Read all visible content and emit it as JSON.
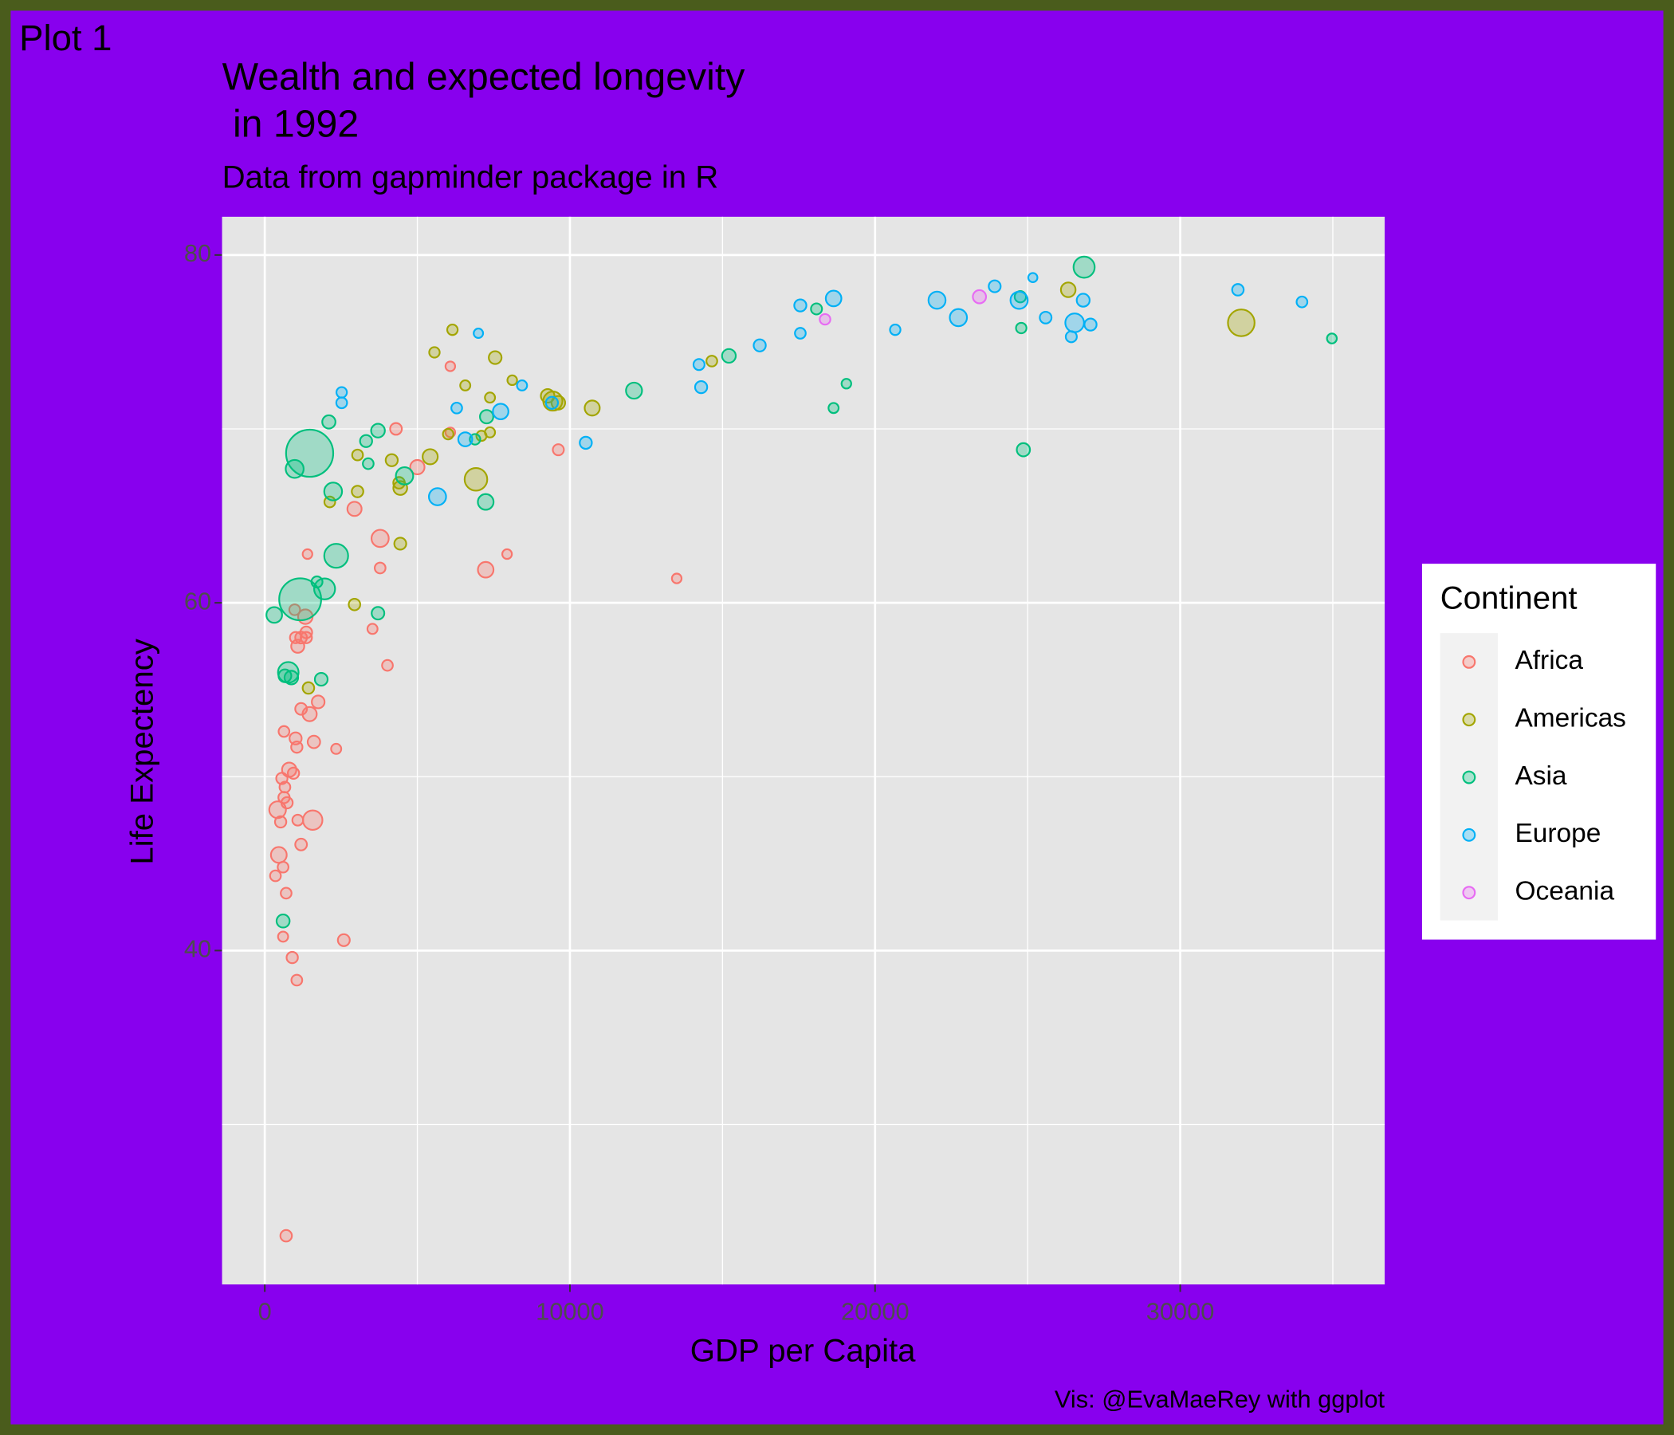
{
  "chart_data": {
    "type": "scatter",
    "tag": "Plot 1",
    "title": "Wealth and expected longevity\n in 1992",
    "subtitle": "Data from gapminder package in R",
    "x_label": "GDP per Capita",
    "y_label": "Life Expectency",
    "caption": "Vis: @EvaMaeRey with ggplot",
    "legend_title": "Continent",
    "legend": "right",
    "grid": true,
    "xlim": [
      -1400,
      36700
    ],
    "ylim": [
      20.8,
      82.2
    ],
    "xticks": [
      0,
      10000,
      20000,
      30000
    ],
    "yticks": [
      40,
      60,
      80
    ],
    "xminor": [
      5000,
      15000,
      25000,
      35000
    ],
    "yminor": [
      30,
      50,
      70
    ],
    "series": [
      {
        "name": "Africa",
        "color": "#F8766D",
        "x": [
          700,
          2590,
          1050,
          900,
          600,
          700,
          350,
          600,
          460,
          1190,
          1570,
          1080,
          520,
          420,
          730,
          630,
          660,
          560,
          800,
          940,
          1050,
          1010,
          1610,
          2340,
          630,
          1190,
          1470,
          1750,
          1080,
          1010,
          1190,
          1360,
          1360,
          980,
          1330,
          4020,
          3530,
          3780,
          1400,
          3780,
          2940,
          4300,
          5000,
          6080,
          6080,
          7240,
          7940,
          9620,
          13500
        ],
        "values": [
          23.6,
          40.6,
          38.3,
          39.6,
          40.8,
          43.3,
          44.3,
          44.8,
          45.5,
          46.1,
          47.5,
          47.5,
          47.4,
          48.1,
          48.5,
          48.8,
          49.4,
          49.9,
          50.4,
          50.2,
          51.7,
          52.2,
          52.0,
          51.6,
          52.6,
          53.9,
          53.6,
          54.3,
          57.5,
          58.0,
          58.0,
          58.3,
          58.0,
          59.6,
          59.2,
          56.4,
          58.5,
          62.0,
          62.8,
          63.7,
          65.4,
          70.0,
          67.8,
          73.6,
          69.8,
          61.9,
          62.8,
          68.8,
          61.4
        ],
        "sizes": [
          7,
          9,
          4,
          6,
          2,
          4,
          4,
          4,
          41,
          8,
          93,
          4,
          6,
          52,
          6,
          6,
          4,
          6,
          26,
          6,
          6,
          10,
          12,
          2,
          4,
          8,
          25,
          14,
          16,
          6,
          8,
          8,
          6,
          4,
          28,
          4,
          2,
          4,
          1,
          59,
          25,
          8,
          26,
          1,
          1,
          39,
          1,
          5,
          1
        ]
      },
      {
        "name": "Americas",
        "color": "#A3A500",
        "x": [
          32000,
          26330,
          10730,
          9440,
          9270,
          6920,
          7550,
          6150,
          5560,
          6570,
          8110,
          7380,
          7380,
          7100,
          6010,
          5420,
          4440,
          4400,
          4160,
          3040,
          3040,
          2130,
          4440,
          2940,
          1430,
          14650,
          9620
        ],
        "values": [
          76.1,
          78.0,
          71.2,
          71.6,
          71.9,
          67.1,
          74.1,
          75.7,
          74.4,
          72.5,
          72.8,
          71.8,
          69.8,
          69.6,
          69.7,
          68.4,
          66.6,
          66.9,
          68.2,
          68.5,
          66.4,
          65.8,
          63.4,
          59.9,
          55.1,
          73.9,
          71.5
        ],
        "sizes": [
          256,
          29,
          33,
          88,
          20,
          155,
          14,
          3,
          3,
          2,
          1,
          2,
          2,
          2,
          3,
          34,
          22,
          7,
          10,
          4,
          7,
          4,
          9,
          7,
          7,
          4,
          20
        ]
      },
      {
        "name": "Asia",
        "color": "#00BF7D",
        "x": [
          1470,
          1160,
          2340,
          1960,
          1710,
          310,
          770,
          870,
          660,
          1850,
          600,
          980,
          2240,
          2100,
          3320,
          3710,
          3390,
          4580,
          3710,
          6890,
          7270,
          7240,
          12100,
          15210,
          18080,
          19060,
          18640,
          24790,
          24860,
          24760,
          26850,
          34970
        ],
        "values": [
          68.6,
          60.2,
          62.7,
          60.8,
          61.2,
          59.3,
          56.0,
          55.7,
          55.8,
          55.6,
          41.7,
          67.7,
          66.4,
          70.4,
          69.3,
          69.9,
          68.0,
          67.3,
          59.4,
          69.4,
          70.7,
          65.8,
          72.2,
          74.2,
          76.9,
          72.6,
          71.2,
          75.8,
          68.8,
          77.6,
          79.3,
          75.2
        ],
        "sizes": [
          1164,
          872,
          184,
          120,
          5,
          40,
          113,
          20,
          14,
          14,
          16,
          69,
          67,
          17,
          10,
          21,
          4,
          60,
          13,
          3,
          18,
          40,
          44,
          21,
          5,
          1,
          2,
          3,
          17,
          6,
          124,
          1.4
        ]
      },
      {
        "name": "Europe",
        "color": "#00B0F6",
        "x": [
          2520,
          2520,
          6290,
          6570,
          5660,
          7730,
          7000,
          8430,
          9410,
          10520,
          14230,
          14300,
          16220,
          17550,
          17550,
          18640,
          20660,
          22030,
          22730,
          23920,
          24720,
          25170,
          25590,
          26430,
          26540,
          26820,
          27060,
          31890,
          33990
        ],
        "values": [
          72.1,
          71.5,
          71.2,
          69.4,
          66.1,
          71.0,
          75.5,
          72.5,
          71.5,
          69.2,
          73.7,
          72.4,
          74.8,
          75.5,
          77.1,
          77.5,
          75.7,
          77.4,
          76.4,
          78.2,
          77.4,
          78.7,
          76.4,
          75.3,
          76.1,
          77.4,
          76.0,
          78.0,
          77.3
        ],
        "sizes": [
          3,
          4,
          4,
          23,
          58,
          38,
          0.6,
          2,
          10,
          10,
          5,
          10,
          10,
          4,
          10,
          39,
          3,
          57,
          58,
          9,
          59,
          0.3,
          8,
          5,
          80,
          15,
          10,
          7,
          4
        ]
      },
      {
        "name": "Oceania",
        "color": "#E76BF3",
        "x": [
          23420,
          18360
        ],
        "values": [
          77.6,
          76.3
        ],
        "sizes": [
          17,
          3.4
        ]
      }
    ]
  }
}
